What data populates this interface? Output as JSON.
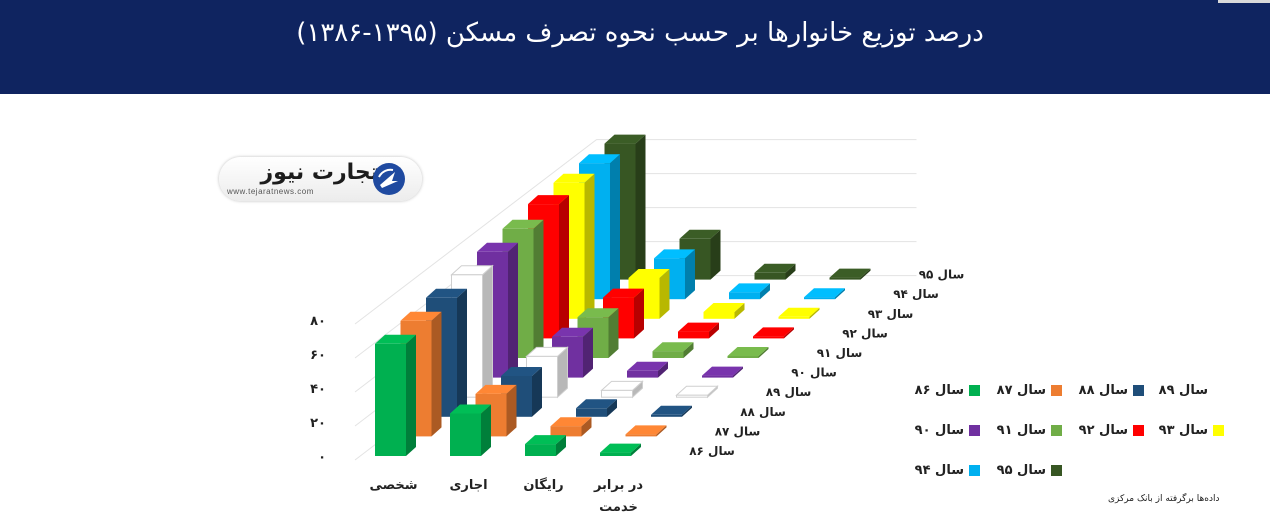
{
  "header": {
    "title": "درصد توزیع خانوارها بر حسب نحوه تصرف مسکن (۱۳۹۵-۱۳۸۶)"
  },
  "logo": {
    "brand": "تجارت نیوز",
    "url": "www.tejaratnews.com",
    "icon": "tejarat-arrow-logo-icon"
  },
  "source_note": "داده‌ها برگرفته از بانک مرکزی",
  "chart_data": {
    "type": "bar",
    "title": "درصد توزیع خانوارها بر حسب نحوه تصرف مسکن (۱۳۹۵-۱۳۸۶)",
    "categories": [
      "شخصی",
      "اجاری",
      "رایگان",
      "در برابر خدمت"
    ],
    "yticks": [
      "۰",
      "۲۰",
      "۴۰",
      "۶۰",
      "۸۰"
    ],
    "ylim": [
      0,
      80
    ],
    "legend_position": "bottom-right",
    "series": [
      {
        "name": "سال ۸۶",
        "depth_label": "سال ۸۶",
        "color": "#00b050",
        "values": [
          66,
          25,
          7,
          2
        ]
      },
      {
        "name": "سال ۸۷",
        "depth_label": "سال ۸۷",
        "color": "#ed7d31",
        "values": [
          68,
          25,
          6,
          1
        ]
      },
      {
        "name": "سال ۸۸",
        "depth_label": "سال ۸۸",
        "color": "#1f4e79",
        "values": [
          70,
          24,
          5,
          1
        ]
      },
      {
        "name": "سال ۸۹",
        "depth_label": "سال ۸۹",
        "color": "#ffffff",
        "values": [
          72,
          24,
          4,
          1
        ]
      },
      {
        "name": "سال ۹۰",
        "depth_label": "سال ۹۰",
        "color": "#7030a0",
        "values": [
          74,
          24,
          4,
          1
        ]
      },
      {
        "name": "سال ۹۱",
        "depth_label": "سال ۹۱",
        "color": "#70ad47",
        "values": [
          76,
          24,
          4,
          1
        ]
      },
      {
        "name": "سال ۹۲",
        "depth_label": "سال ۹۲",
        "color": "#ff0000",
        "values": [
          79,
          24,
          4,
          1
        ]
      },
      {
        "name": "سال ۹۳",
        "depth_label": "سال ۹۳",
        "color": "#ffff00",
        "values": [
          80,
          24,
          4,
          1
        ]
      },
      {
        "name": "سال ۹۴",
        "depth_label": "سال ۹۴",
        "color": "#00b0f0",
        "values": [
          80,
          24,
          4,
          1
        ]
      },
      {
        "name": "سال ۹۵",
        "depth_label": "سال ۹۵",
        "color": "#375623",
        "values": [
          80,
          24,
          4,
          1
        ]
      }
    ]
  }
}
